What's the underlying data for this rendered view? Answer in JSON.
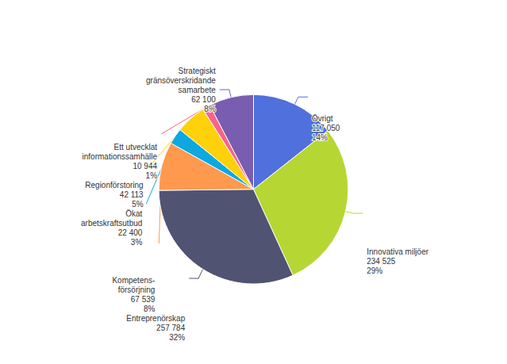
{
  "chart_data": {
    "type": "pie",
    "categories": [
      "Övrigt\n117 050\n14%",
      "Innovativa miljöer\n234 525\n29%",
      "Entreprenörskap\n257 784\n32%",
      "Kompetens-\nförsörjning\n67 539\n8%",
      "Ökat\narbetskraftsutbud\n22 400\n3%",
      "Regionförstoring\n42 113\n5%",
      "Ett utvecklat\ninformationssamhälle\n10 944\n1%",
      "Strategiskt\ngränsöverskridande\nsamarbete\n62 100\n8%"
    ],
    "values": [
      117050,
      234525,
      257784,
      67539,
      22400,
      42113,
      10944,
      62100
    ]
  }
}
